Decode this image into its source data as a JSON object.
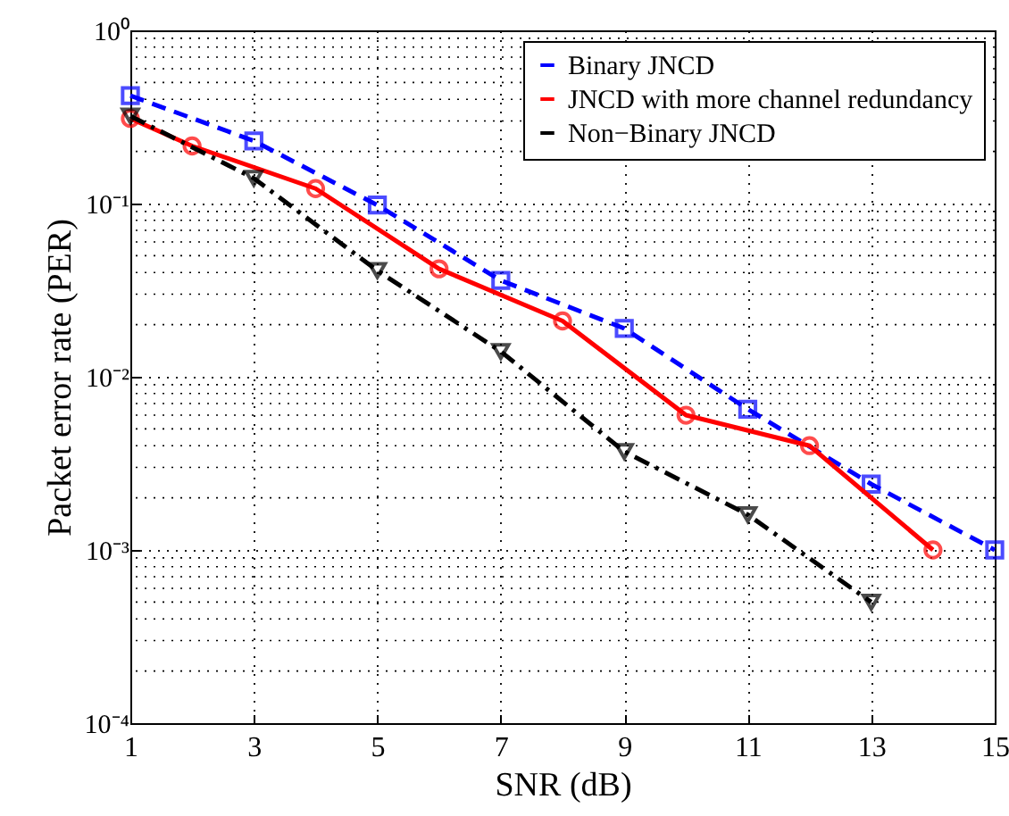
{
  "chart_data": {
    "type": "line",
    "xlabel": "SNR (dB)",
    "ylabel": "Packet error rate (PER)",
    "log": "y",
    "grid": true,
    "legend": "top right",
    "xlim": [
      1,
      15
    ],
    "xticks": [
      1,
      3,
      5,
      7,
      9,
      11,
      13,
      15
    ],
    "ylim": [
      0.0001,
      1
    ],
    "yticks": [
      {
        "value": 1,
        "label": "10⁰"
      },
      {
        "value": 0.1,
        "label": "10⁻¹"
      },
      {
        "value": 0.01,
        "label": "10⁻²"
      },
      {
        "value": 0.001,
        "label": "10⁻³"
      },
      {
        "value": 0.0001,
        "label": "10⁻⁴"
      }
    ],
    "series": [
      {
        "name": "Binary JNCD",
        "color": "#0000ff",
        "marker": "square",
        "line_style": "dashed",
        "x": [
          1,
          3,
          5,
          7,
          9,
          11,
          13,
          15
        ],
        "values": [
          0.42,
          0.23,
          0.098,
          0.036,
          0.019,
          0.0065,
          0.0024,
          0.001
        ]
      },
      {
        "name": "JNCD with more channel redundancy",
        "color": "#ff0000",
        "marker": "circle",
        "line_style": "solid",
        "x": [
          1,
          2,
          4,
          6,
          8,
          10,
          12,
          14
        ],
        "values": [
          0.31,
          0.215,
          0.122,
          0.042,
          0.021,
          0.006,
          0.004,
          0.001
        ]
      },
      {
        "name": "Non−Binary JNCD",
        "color": "#000000",
        "marker": "triangle",
        "line_style": "dashdot",
        "x": [
          1,
          3,
          5,
          7,
          9,
          11,
          13
        ],
        "values": [
          0.32,
          0.14,
          0.041,
          0.014,
          0.0037,
          0.0016,
          0.0005
        ]
      }
    ]
  }
}
